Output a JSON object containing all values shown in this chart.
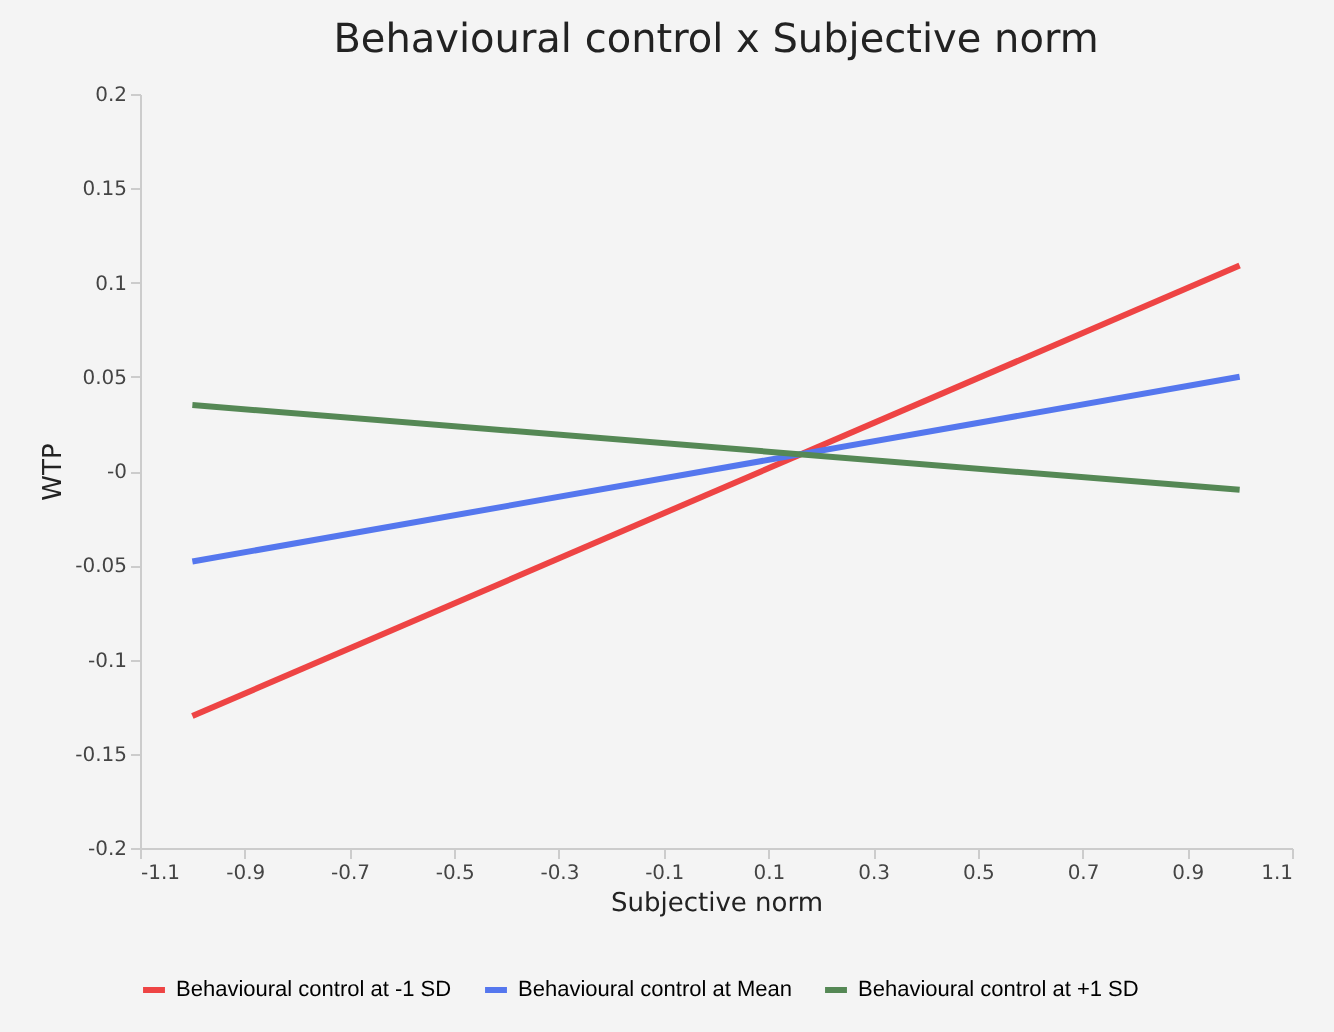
{
  "chart_data": {
    "type": "line",
    "title": "Behavioural control x Subjective norm",
    "xlabel": "Subjective norm",
    "ylabel": "WTP",
    "x": [
      -1,
      1
    ],
    "series": [
      {
        "name": "Behavioural control at -1 SD",
        "color": "#ee4444",
        "values": [
          -0.13,
          0.109
        ]
      },
      {
        "name": "Behavioural control at Mean",
        "color": "#5577ee",
        "values": [
          -0.048,
          0.05
        ]
      },
      {
        "name": "Behavioural control at +1 SD",
        "color": "#558855",
        "values": [
          0.035,
          -0.01
        ]
      }
    ],
    "xlim": [
      -1.1,
      1.1
    ],
    "xticks": [
      -1.1,
      -0.9,
      -0.7,
      -0.5,
      -0.3,
      -0.1,
      0.1,
      0.3,
      0.5,
      0.7,
      0.9,
      1.1
    ],
    "ylim": [
      -0.2,
      0.2
    ],
    "yticks": [
      -0.2,
      -0.15,
      -0.1,
      -0.05,
      {
        "value": 0,
        "label": "-0"
      },
      0.05,
      0.1,
      0.15,
      0.2
    ],
    "grid": false,
    "legend": "bottom",
    "marker": "none",
    "line_style": "solid"
  }
}
